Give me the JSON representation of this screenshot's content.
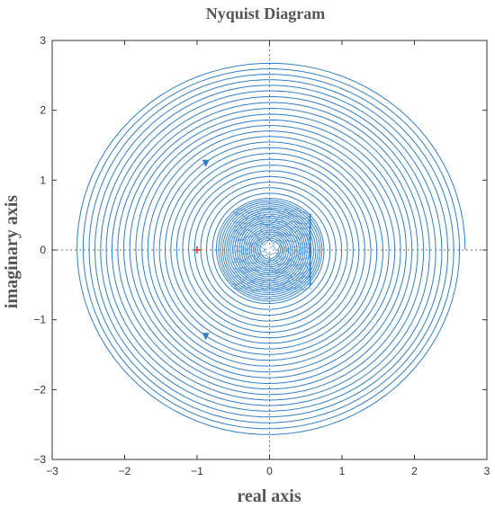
{
  "chart_data": {
    "type": "line",
    "title": "Nyquist Diagram",
    "xlabel": "real axis",
    "ylabel": "imaginary axis",
    "xlim": [
      -3,
      3
    ],
    "ylim": [
      -3,
      3
    ],
    "xticks": [
      -3,
      -2,
      -1,
      0,
      1,
      2,
      3
    ],
    "yticks": [
      -3,
      -2,
      -1,
      0,
      1,
      2,
      3
    ],
    "x_tick_labels": [
      "−3",
      "−2",
      "−1",
      "0",
      "1",
      "2",
      "3"
    ],
    "y_tick_labels": [
      "−3",
      "−2",
      "−1",
      "0",
      "1",
      "2",
      "3"
    ],
    "grid": false,
    "zero_lines": "dotted",
    "line_color": "#2f7fc8",
    "critical_point_color": "#d9342b",
    "series": [
      {
        "kind": "spiral",
        "center": [
          0.0,
          0.0
        ],
        "outer_radius": 2.7,
        "middle_radius": 0.75,
        "inner_radius": 0.12,
        "outer_turns": 24,
        "inner_turns": 22
      }
    ],
    "critical_point": {
      "x": -1,
      "y": 0
    },
    "direction_arrows": [
      {
        "x": -0.88,
        "y": 1.24
      },
      {
        "x": -0.88,
        "y": -1.24
      }
    ],
    "inner_vertical_segment": {
      "x": 0.56,
      "y_min": -0.52,
      "y_max": 0.52
    },
    "inner_jitter_band": {
      "x_min": -0.5,
      "x_max": 0.58,
      "y_min": -0.55,
      "y_max": 0.55
    }
  }
}
